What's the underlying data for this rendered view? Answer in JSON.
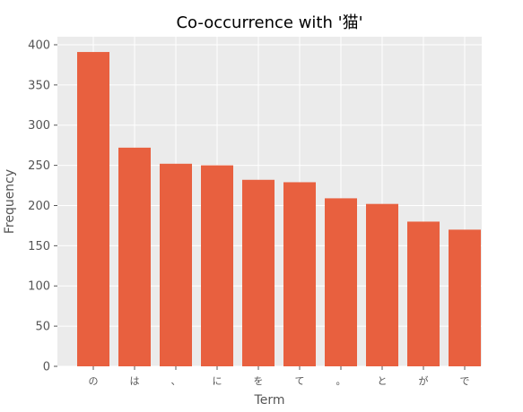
{
  "chart_data": {
    "type": "bar",
    "title": "Co-occurrence with '猫'",
    "xlabel": "Term",
    "ylabel": "Frequency",
    "categories": [
      "の",
      "は",
      "、",
      "に",
      "を",
      "て",
      "。",
      "と",
      "が",
      "で"
    ],
    "values": [
      391,
      272,
      252,
      250,
      232,
      229,
      209,
      202,
      180,
      170
    ],
    "ylim": [
      0,
      410
    ],
    "yticks": [
      0,
      50,
      100,
      150,
      200,
      250,
      300,
      350,
      400
    ],
    "grid": true,
    "legend": "none",
    "colors": {
      "bar": "#E8603F",
      "plot_background": "#EBEBEB",
      "grid": "#FFFFFF"
    }
  }
}
